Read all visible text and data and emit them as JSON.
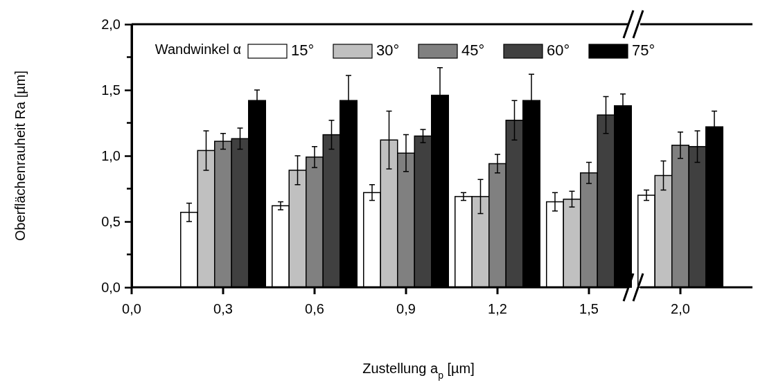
{
  "chart_data": {
    "type": "bar",
    "xlabel": "Zustellung a$_{p}$ [µm]",
    "ylabel": "Oberflächenrauheit Ra [µm]",
    "legend_title": "Wandwinkel α",
    "legend": "top right",
    "categories": [
      "0,0",
      "0,3",
      "0,6",
      "0,9",
      "1,2",
      "1,5",
      "2,0"
    ],
    "ylim": [
      0,
      2
    ],
    "yticks": [
      {
        "value": 0,
        "label": "0,0"
      },
      {
        "value": 0.5,
        "label": "0,5"
      },
      {
        "value": 1,
        "label": "1,0"
      },
      {
        "value": 1.5,
        "label": "1,5"
      },
      {
        "value": 2,
        "label": "2,0"
      }
    ],
    "series": [
      {
        "name": "15°",
        "color": "#ffffff",
        "values": [
          null,
          0.57,
          0.62,
          0.72,
          0.69,
          0.65,
          0.7
        ],
        "errors": [
          null,
          0.07,
          0.03,
          0.06,
          0.03,
          0.07,
          0.04
        ]
      },
      {
        "name": "30°",
        "color": "#c0c0c0",
        "values": [
          null,
          1.04,
          0.89,
          1.12,
          0.69,
          0.67,
          0.85
        ],
        "errors": [
          null,
          0.15,
          0.11,
          0.22,
          0.13,
          0.06,
          0.11
        ]
      },
      {
        "name": "45°",
        "color": "#808080",
        "values": [
          null,
          1.11,
          0.99,
          1.02,
          0.94,
          0.87,
          1.08
        ],
        "errors": [
          null,
          0.06,
          0.08,
          0.14,
          0.07,
          0.08,
          0.1
        ]
      },
      {
        "name": "60°",
        "color": "#404040",
        "values": [
          null,
          1.13,
          1.16,
          1.15,
          1.27,
          1.31,
          1.07
        ],
        "errors": [
          null,
          0.08,
          0.11,
          0.05,
          0.15,
          0.14,
          0.12
        ]
      },
      {
        "name": "75°",
        "color": "#000000",
        "values": [
          null,
          1.42,
          1.42,
          1.46,
          1.42,
          1.38,
          1.22
        ],
        "errors": [
          null,
          0.08,
          0.19,
          0.21,
          0.2,
          0.09,
          0.12
        ]
      }
    ]
  }
}
